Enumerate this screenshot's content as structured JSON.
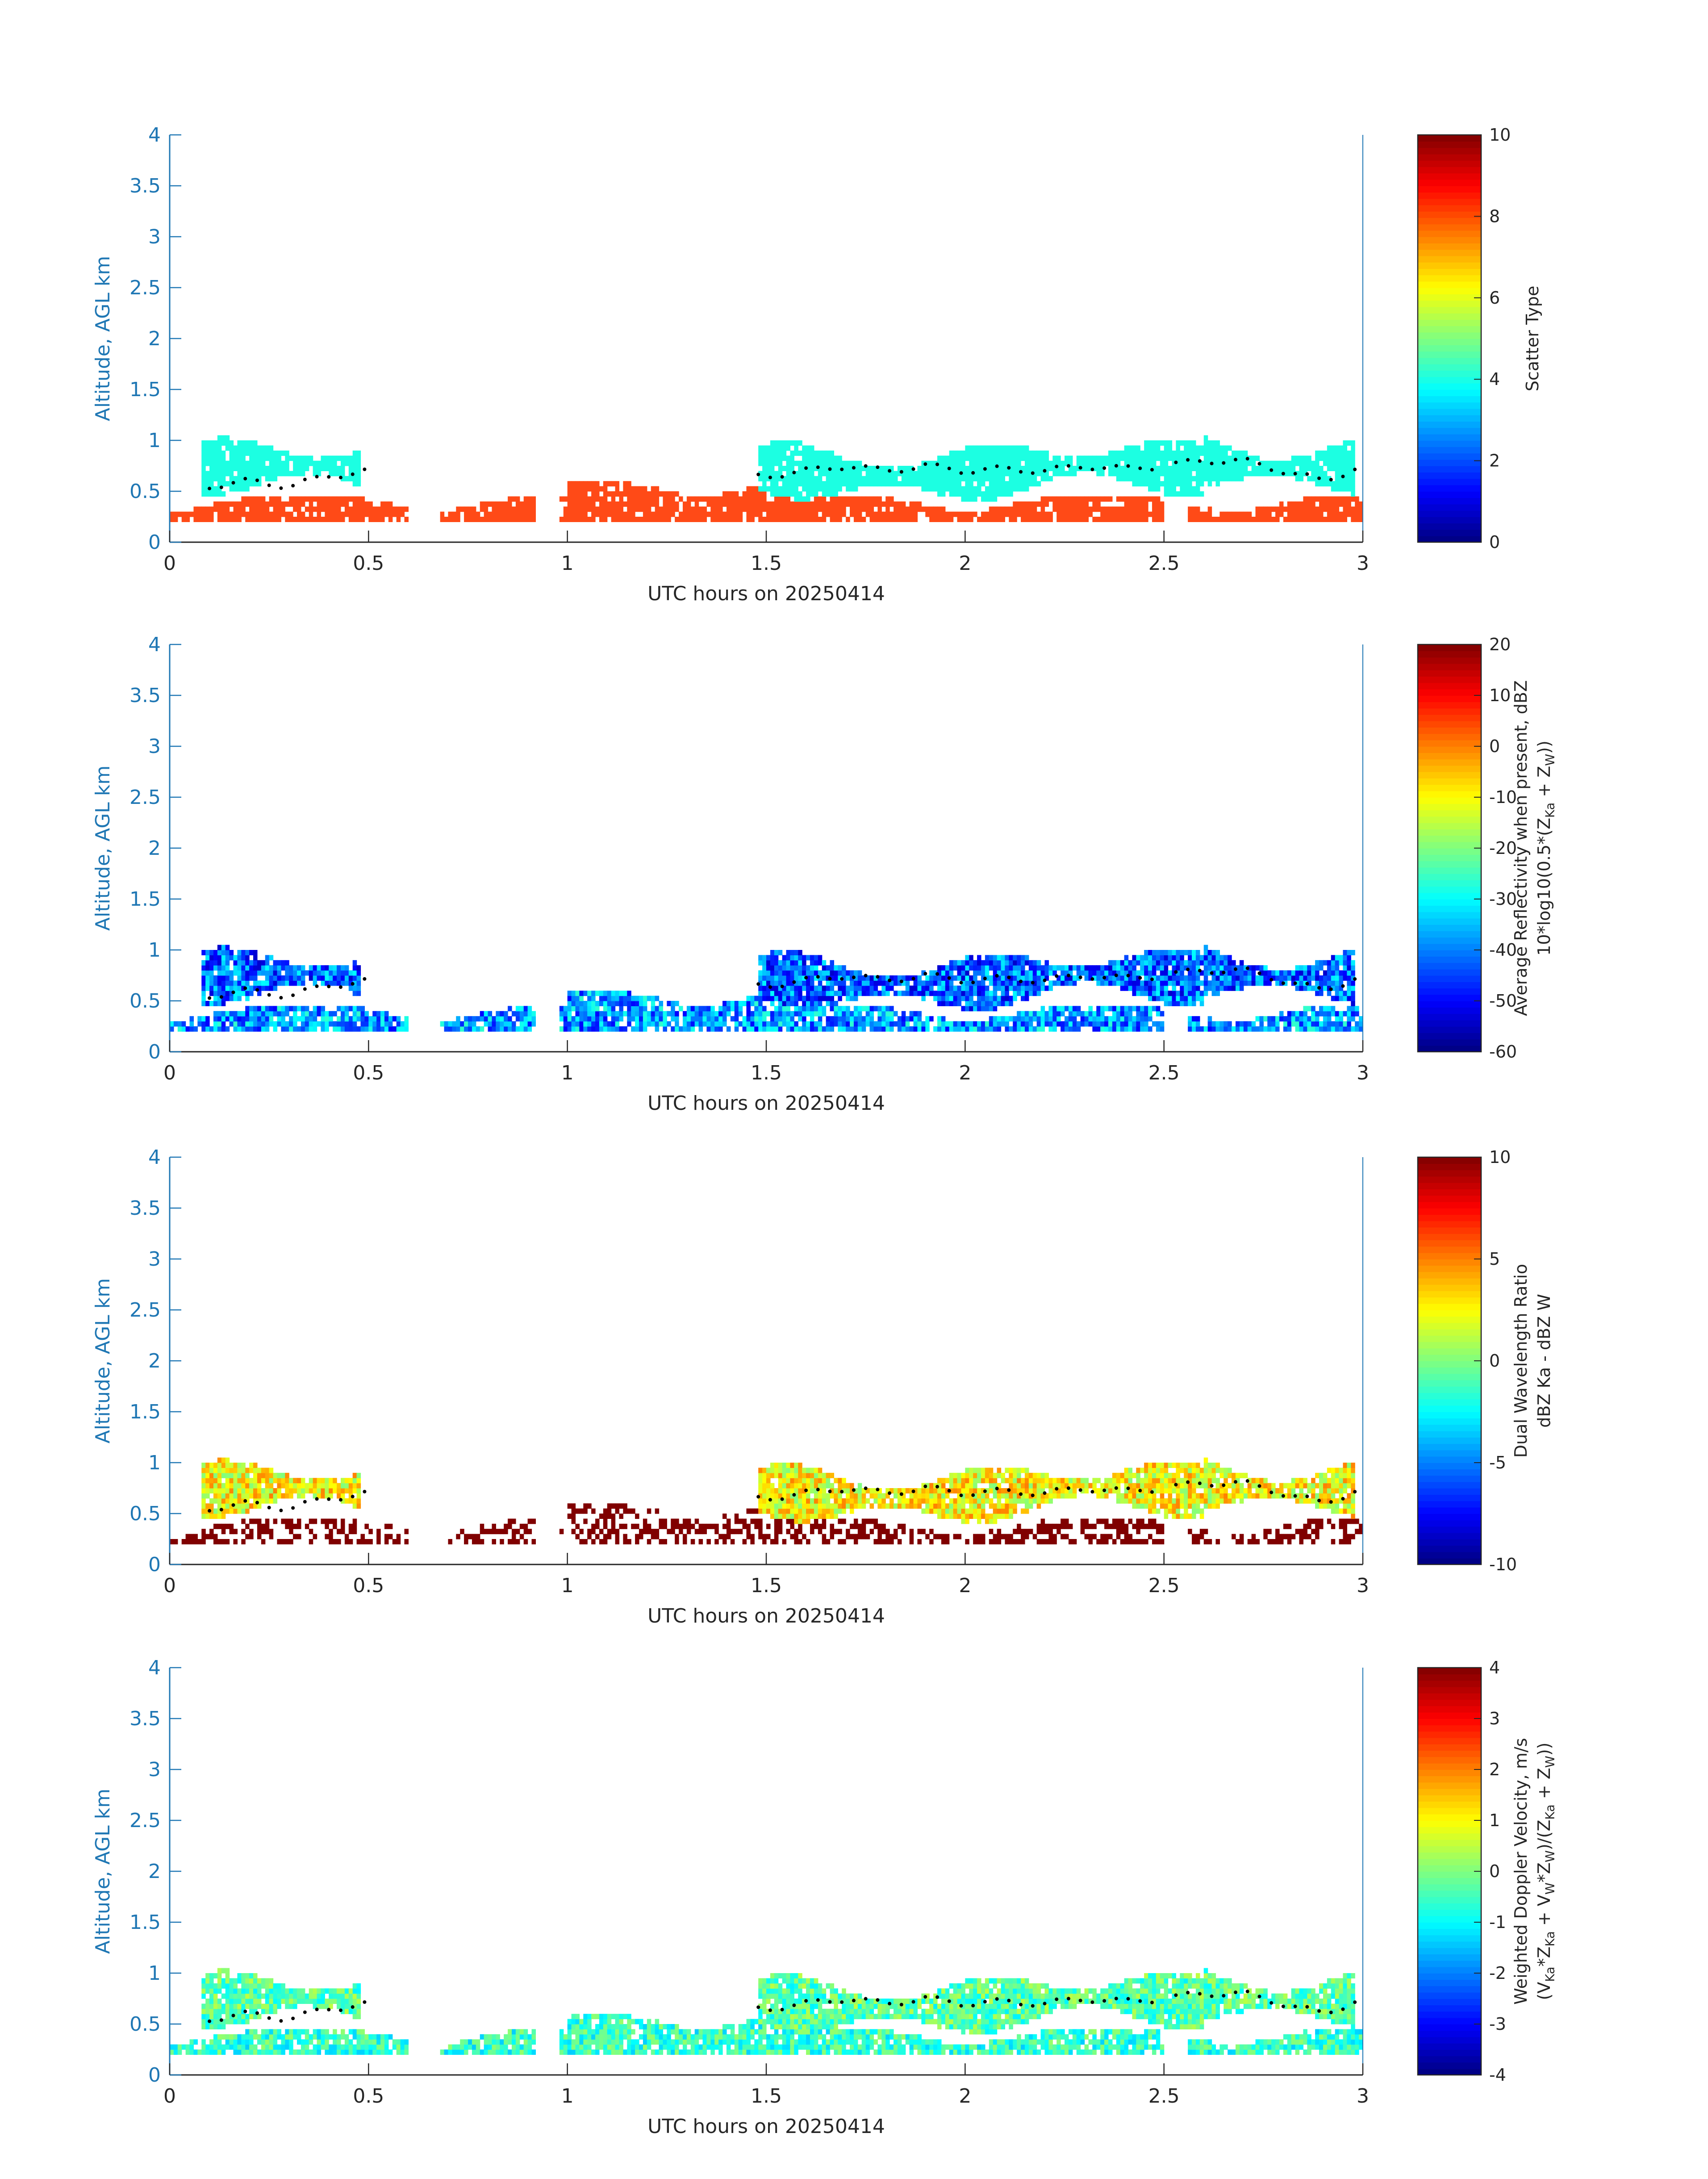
{
  "figure": {
    "axis_color": "#1f77b4",
    "text_color": "#262626",
    "dot_color": "#000000"
  },
  "chart_data": [
    {
      "type": "heatmap",
      "title": "",
      "xlabel": "UTC hours on 20250414",
      "ylabel": "Altitude, AGL km",
      "xlim": [
        0,
        3
      ],
      "ylim": [
        0,
        4
      ],
      "x_ticks": [
        0,
        0.5,
        1,
        1.5,
        2,
        2.5,
        3
      ],
      "x_tick_labels": [
        "0",
        "0.5",
        "1",
        "1.5",
        "2",
        "2.5",
        "3"
      ],
      "y_ticks": [
        0,
        0.5,
        1,
        1.5,
        2,
        2.5,
        3,
        3.5,
        4
      ],
      "y_tick_labels": [
        "0",
        "0.5",
        "1",
        "1.5",
        "2",
        "2.5",
        "3",
        "3.5",
        "4"
      ],
      "grid": false,
      "colorbar": {
        "label_lines": [
          "Scatter Type"
        ],
        "range": [
          0,
          10
        ],
        "colormap": "jet",
        "ticks": [
          0,
          2,
          4,
          6,
          8,
          10
        ],
        "tick_labels": [
          "0",
          "2",
          "4",
          "6",
          "8",
          "10"
        ]
      },
      "data_categories": [
        {
          "value": 8,
          "color": "#ff4a17",
          "description": "lower layer"
        },
        {
          "value": 4,
          "color": "#1cffe2",
          "description": "upper layer"
        }
      ],
      "cloud_base_hours": [
        0.1,
        0.2,
        0.3,
        0.4,
        0.5,
        1.5,
        1.6,
        1.7,
        1.8,
        1.9,
        2.0,
        2.1,
        2.2,
        2.3,
        2.4,
        2.5,
        2.6,
        2.7,
        2.8,
        2.9,
        3.0
      ],
      "cloud_base_km": [
        0.55,
        0.6,
        0.55,
        0.65,
        0.7,
        0.65,
        0.7,
        0.75,
        0.7,
        0.75,
        0.7,
        0.72,
        0.7,
        0.75,
        0.72,
        0.75,
        0.8,
        0.8,
        0.7,
        0.6,
        0.75
      ]
    },
    {
      "type": "heatmap",
      "title": "",
      "xlabel": "UTC hours on 20250414",
      "ylabel": "Altitude, AGL km",
      "xlim": [
        0,
        3
      ],
      "ylim": [
        0,
        4
      ],
      "x_ticks": [
        0,
        0.5,
        1,
        1.5,
        2,
        2.5,
        3
      ],
      "x_tick_labels": [
        "0",
        "0.5",
        "1",
        "1.5",
        "2",
        "2.5",
        "3"
      ],
      "y_ticks": [
        0,
        0.5,
        1,
        1.5,
        2,
        2.5,
        3,
        3.5,
        4
      ],
      "y_tick_labels": [
        "0",
        "0.5",
        "1",
        "1.5",
        "2",
        "2.5",
        "3",
        "3.5",
        "4"
      ],
      "grid": false,
      "colorbar": {
        "label_lines": [
          "Average Reflectivity when present, dBZ",
          "10*log10(0.5*(Z Ka + Z W))"
        ],
        "range": [
          -60,
          20
        ],
        "colormap": "jet",
        "ticks": [
          -60,
          -50,
          -40,
          -30,
          -20,
          -10,
          0,
          10,
          20
        ],
        "tick_labels": [
          "-60",
          "-50",
          "-40",
          "-30",
          "-20",
          "-10",
          "0",
          "10",
          "20"
        ]
      },
      "typical_values": {
        "near_surface": -35,
        "upper_layer": -40,
        "edges": -55
      }
    },
    {
      "type": "heatmap",
      "title": "",
      "xlabel": "UTC hours on 20250414",
      "ylabel": "Altitude, AGL km",
      "xlim": [
        0,
        3
      ],
      "ylim": [
        0,
        4
      ],
      "x_ticks": [
        0,
        0.5,
        1,
        1.5,
        2,
        2.5,
        3
      ],
      "x_tick_labels": [
        "0",
        "0.5",
        "1",
        "1.5",
        "2",
        "2.5",
        "3"
      ],
      "y_ticks": [
        0,
        0.5,
        1,
        1.5,
        2,
        2.5,
        3,
        3.5,
        4
      ],
      "y_tick_labels": [
        "0",
        "0.5",
        "1",
        "1.5",
        "2",
        "2.5",
        "3",
        "3.5",
        "4"
      ],
      "grid": false,
      "colorbar": {
        "label_lines": [
          "Dual Wavelength Ratio",
          "dBZ Ka - dBZ W"
        ],
        "range": [
          -10,
          10
        ],
        "colormap": "jet",
        "ticks": [
          -10,
          -5,
          0,
          5,
          10
        ],
        "tick_labels": [
          "-10",
          "-5",
          "0",
          "5",
          "10"
        ]
      },
      "typical_values": {
        "lower_layer": 10,
        "upper_layer": 3
      }
    },
    {
      "type": "heatmap",
      "title": "",
      "xlabel": "UTC hours on 20250414",
      "ylabel": "Altitude, AGL km",
      "xlim": [
        0,
        3
      ],
      "ylim": [
        0,
        4
      ],
      "x_ticks": [
        0,
        0.5,
        1,
        1.5,
        2,
        2.5,
        3
      ],
      "x_tick_labels": [
        "0",
        "0.5",
        "1",
        "1.5",
        "2",
        "2.5",
        "3"
      ],
      "y_ticks": [
        0,
        0.5,
        1,
        1.5,
        2,
        2.5,
        3,
        3.5,
        4
      ],
      "y_tick_labels": [
        "0",
        "0.5",
        "1",
        "1.5",
        "2",
        "2.5",
        "3",
        "3.5",
        "4"
      ],
      "grid": false,
      "colorbar": {
        "label_lines": [
          "Weighted Doppler Velocity, m/s",
          "(V Ka*Z Ka + V W*Z W)/(Z Ka + Z W))"
        ],
        "range": [
          -4,
          4
        ],
        "colormap": "jet",
        "ticks": [
          -4,
          -3,
          -2,
          -1,
          0,
          1,
          2,
          3,
          4
        ],
        "tick_labels": [
          "-4",
          "-3",
          "-2",
          "-1",
          "0",
          "1",
          "2",
          "3",
          "4"
        ]
      },
      "typical_values": {
        "lower_layer": -0.5,
        "upper_layer": -0.3
      }
    }
  ]
}
